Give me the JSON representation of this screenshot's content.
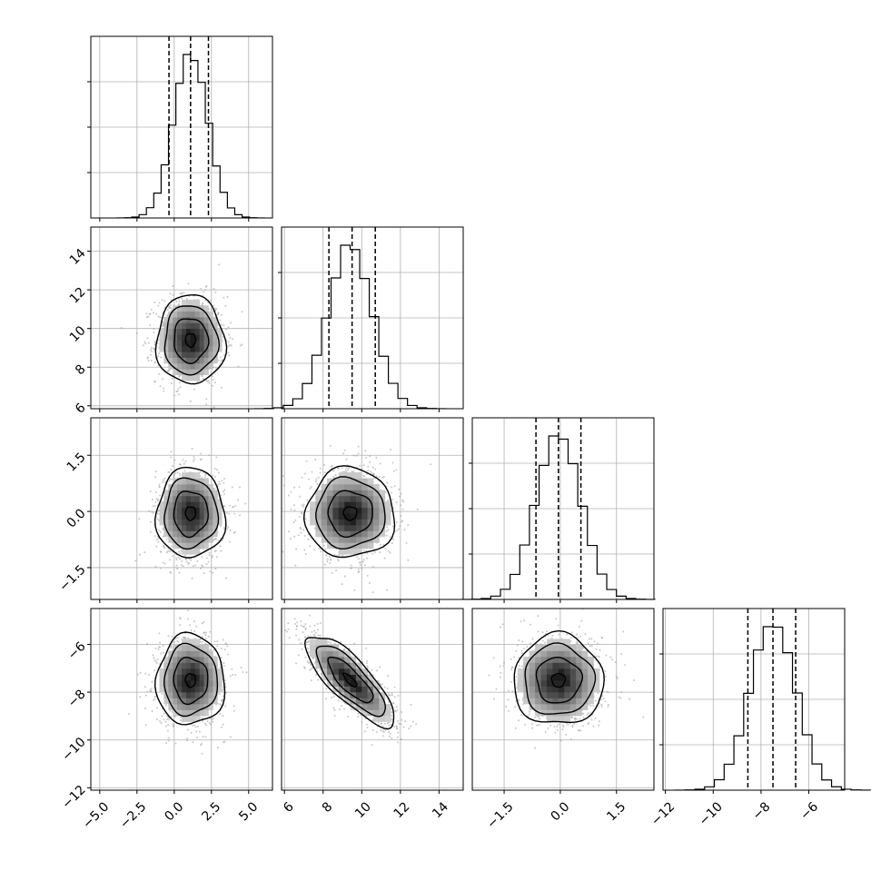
{
  "chart_data": {
    "type": "corner",
    "title": "",
    "grid": true,
    "parameters": [
      {
        "mean": 1.1,
        "sd": 1.15,
        "q16": -0.35,
        "q50": 1.1,
        "q84": 2.3,
        "range": [
          -5.6,
          6.6
        ],
        "ticks": [
          -5.0,
          -2.5,
          0.0,
          2.5,
          5.0
        ],
        "tick_labels": [
          "−5.0",
          "−2.5",
          "0.0",
          "2.5",
          "5.0"
        ]
      },
      {
        "mean": 9.4,
        "sd": 1.15,
        "q16": 8.3,
        "q50": 9.5,
        "q84": 10.7,
        "range": [
          5.85,
          15.25
        ],
        "ticks": [
          6,
          8,
          10,
          12,
          14
        ],
        "tick_labels": [
          "6",
          "8",
          "10",
          "12",
          "14"
        ]
      },
      {
        "mean": -0.05,
        "sd": 0.6,
        "q16": -0.65,
        "q50": -0.05,
        "q84": 0.55,
        "range": [
          -2.35,
          2.5
        ],
        "ticks": [
          -1.5,
          0.0,
          1.5
        ],
        "tick_labels": [
          "−1.5",
          "0.0",
          "1.5"
        ]
      },
      {
        "mean": -7.5,
        "sd": 0.95,
        "q16": -8.55,
        "q50": -7.5,
        "q84": -6.55,
        "range": [
          -12.1,
          -4.5
        ],
        "ticks": [
          -12,
          -10,
          -8,
          -6
        ],
        "tick_labels": [
          "−12",
          "−10",
          "−8",
          "−6"
        ]
      }
    ],
    "correlations": [
      {
        "i": 1,
        "j": 0,
        "rho": -0.02
      },
      {
        "i": 2,
        "j": 0,
        "rho": 0.0
      },
      {
        "i": 2,
        "j": 1,
        "rho": 0.0
      },
      {
        "i": 3,
        "j": 0,
        "rho": 0.0
      },
      {
        "i": 3,
        "j": 1,
        "rho": -0.8
      },
      {
        "i": 3,
        "j": 2,
        "rho": 0.0
      }
    ],
    "colors": {
      "frame": "#000000",
      "grid": "#b0b0b0",
      "scatter": "#9a9a9a",
      "contour": "#000000",
      "density_dark": "#000000"
    }
  }
}
